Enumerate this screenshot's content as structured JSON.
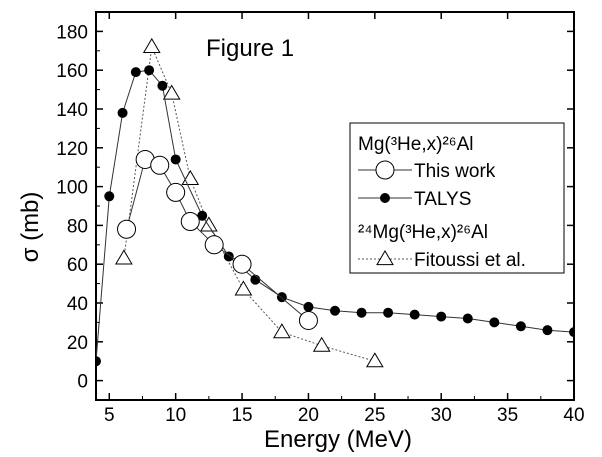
{
  "chart_data": {
    "type": "line",
    "annotation": "Figure 1",
    "xlabel": "Energy (MeV)",
    "ylabel": "σ (mb)",
    "xlim": [
      4,
      40
    ],
    "ylim": [
      -10,
      190
    ],
    "xticks": [
      5,
      10,
      15,
      20,
      25,
      30,
      35,
      40
    ],
    "yticks": [
      0,
      20,
      40,
      60,
      80,
      100,
      120,
      140,
      160,
      180
    ],
    "grid": false,
    "legend": {
      "placement": "right",
      "group1_title": "Mg(³He,x)²⁶Al",
      "group2_title": "²⁴Mg(³He,x)²⁶Al"
    },
    "series": [
      {
        "name": "This work",
        "marker": "open-circle",
        "line": "solid",
        "x": [
          6.3,
          7.7,
          8.8,
          10.0,
          11.1,
          12.9,
          15.0,
          20.0
        ],
        "y": [
          78,
          114,
          111,
          97,
          82,
          70,
          60,
          31
        ]
      },
      {
        "name": "TALYS",
        "marker": "filled-circle",
        "line": "solid",
        "x": [
          4,
          5,
          6,
          7,
          8,
          9,
          10,
          12,
          14,
          16,
          18,
          20,
          22,
          24,
          26,
          28,
          30,
          32,
          34,
          36,
          38,
          40
        ],
        "y": [
          10,
          95,
          138,
          159,
          160,
          152,
          114,
          85,
          64,
          52,
          43,
          38,
          36,
          35,
          35,
          34,
          33,
          32,
          30,
          28,
          26,
          25
        ]
      },
      {
        "name": "Fitoussi et al.",
        "marker": "open-triangle",
        "line": "dotted",
        "x": [
          6.1,
          8.2,
          9.7,
          11.1,
          12.5,
          15.1,
          18.0,
          21.0,
          25.0
        ],
        "y": [
          63,
          172,
          148,
          104,
          80,
          47,
          25,
          18,
          10
        ]
      }
    ]
  }
}
